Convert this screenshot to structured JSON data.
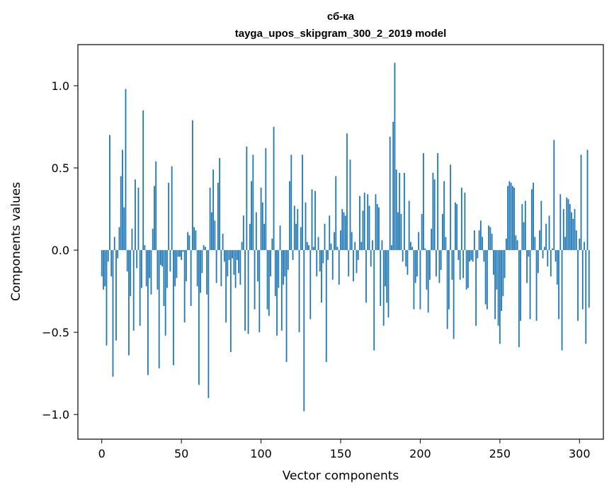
{
  "chart_data": {
    "type": "bar",
    "title": "сб-ка",
    "subtitle": "tayga_upos_skipgram_300_2_2019 model",
    "xlabel": "Vector components",
    "ylabel": "Components values",
    "xlim": [
      -15,
      315
    ],
    "ylim": [
      -1.15,
      1.25
    ],
    "xticks": [
      0,
      50,
      100,
      150,
      200,
      250,
      300
    ],
    "yticks": [
      -1.0,
      -0.5,
      0.0,
      0.5,
      1.0
    ],
    "ytick_labels": [
      "−1.0",
      "−0.5",
      "0.0",
      "0.5",
      "1.0"
    ],
    "grid": false,
    "bar_color": "#1f77b4",
    "x_start": 0,
    "values": [
      -0.16,
      -0.24,
      -0.22,
      -0.58,
      -0.07,
      0.7,
      -0.16,
      -0.77,
      0.08,
      -0.55,
      -0.05,
      0.14,
      0.45,
      0.61,
      0.26,
      0.98,
      -0.13,
      -0.64,
      -0.28,
      0.13,
      -0.49,
      0.43,
      -0.11,
      0.38,
      -0.46,
      -0.23,
      0.85,
      0.03,
      -0.22,
      -0.76,
      -0.17,
      -0.27,
      0.13,
      0.39,
      0.54,
      -0.24,
      -0.72,
      -0.09,
      -0.1,
      -0.34,
      -0.52,
      -0.23,
      0.41,
      -0.13,
      0.51,
      -0.7,
      -0.22,
      -0.17,
      -0.04,
      -0.04,
      -0.06,
      -0.01,
      -0.44,
      -0.19,
      0.11,
      0.09,
      -0.34,
      0.79,
      0.14,
      0.12,
      -0.22,
      -0.82,
      -0.26,
      -0.14,
      0.03,
      0.02,
      -0.27,
      -0.9,
      0.38,
      0.23,
      0.49,
      0.18,
      -0.2,
      0.41,
      0.56,
      -0.22,
      0.1,
      -0.07,
      -0.44,
      -0.16,
      -0.06,
      -0.62,
      -0.05,
      -0.15,
      -0.23,
      -0.06,
      -0.14,
      -0.21,
      0.05,
      0.21,
      -0.49,
      0.63,
      -0.51,
      0.16,
      0.42,
      0.58,
      -0.36,
      0.23,
      -0.19,
      -0.5,
      0.38,
      0.29,
      0.16,
      0.62,
      -0.36,
      -0.4,
      -0.16,
      0.07,
      0.75,
      -0.28,
      -0.52,
      -0.23,
      0.15,
      -0.49,
      -0.21,
      -0.16,
      -0.68,
      -0.12,
      0.42,
      0.58,
      -0.06,
      0.27,
      0.16,
      0.25,
      -0.5,
      0.14,
      0.58,
      -0.98,
      0.29,
      0.05,
      0.03,
      -0.42,
      0.37,
      0.02,
      0.36,
      -0.16,
      0.08,
      -0.13,
      -0.32,
      -0.08,
      0.16,
      -0.68,
      -0.06,
      0.21,
      0.04,
      -0.18,
      0.11,
      0.45,
      0.02,
      -0.21,
      0.12,
      0.25,
      0.23,
      0.21,
      0.71,
      -0.16,
      0.55,
      0.11,
      -0.19,
      0.05,
      -0.14,
      -0.06,
      0.33,
      0.05,
      0.24,
      0.35,
      -0.32,
      0.34,
      0.27,
      -0.1,
      0.06,
      -0.61,
      0.34,
      0.28,
      0.26,
      -0.34,
      0.06,
      -0.46,
      -0.22,
      -0.32,
      -0.41,
      0.69,
      0.03,
      0.78,
      1.14,
      0.49,
      0.23,
      0.47,
      0.22,
      -0.07,
      0.47,
      -0.1,
      -0.15,
      0.3,
      0.05,
      0.02,
      -0.36,
      -0.2,
      -0.16,
      0.11,
      -0.36,
      0.22,
      0.59,
      0.01,
      -0.24,
      -0.38,
      -0.18,
      0.13,
      0.47,
      0.43,
      -0.16,
      0.59,
      -0.2,
      -0.12,
      0.22,
      0.42,
      0.08,
      -0.48,
      -0.36,
      0.52,
      -0.18,
      -0.54,
      0.29,
      0.28,
      -0.06,
      -0.18,
      0.38,
      -0.17,
      0.35,
      -0.24,
      -0.23,
      -0.07,
      -0.06,
      -0.07,
      0.12,
      -0.46,
      -0.05,
      0.12,
      0.18,
      0.08,
      -0.07,
      -0.33,
      -0.36,
      0.15,
      0.14,
      0.1,
      -0.15,
      -0.42,
      -0.24,
      -0.46,
      -0.57,
      -0.37,
      -0.28,
      -0.17,
      0.07,
      0.39,
      0.42,
      0.41,
      0.39,
      0.38,
      0.09,
      0.06,
      -0.59,
      -0.43,
      0.28,
      0.17,
      0.3,
      -0.2,
      -0.04,
      -0.42,
      0.37,
      0.41,
      0.08,
      -0.43,
      -0.14,
      0.12,
      0.3,
      -0.05,
      0.02,
      0.16,
      -0.1,
      0.21,
      -0.16,
      0.01,
      0.67,
      -0.07,
      -0.21,
      -0.42,
      0.34,
      -0.61,
      0.25,
      0.08,
      0.32,
      0.31,
      0.28,
      0.23,
      0.19,
      0.25,
      0.12,
      -0.43,
      0.07,
      0.58,
      -0.36,
      0.05,
      -0.57,
      0.61,
      -0.35
    ]
  }
}
